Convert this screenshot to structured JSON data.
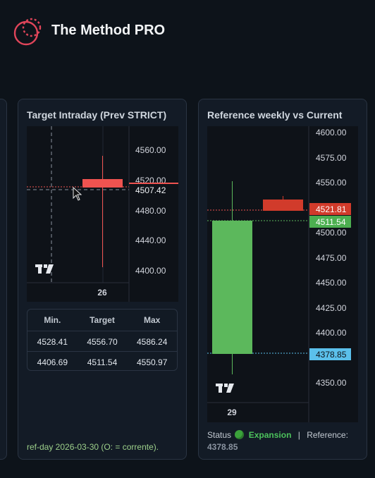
{
  "app": {
    "title": "The Method PRO"
  },
  "colors": {
    "up": "#5cb85c",
    "down": "#ef5350",
    "down_dark": "#d13b2b",
    "ref": "#5bc0eb",
    "grid": "#2a2e39"
  },
  "intraday": {
    "title": "Target Intraday (Prev STRICT)",
    "x_label": "26",
    "price_labels": [
      "4560.00",
      "4520.00",
      "4480.00",
      "4440.00",
      "4400.00"
    ],
    "current_price": "4507.42",
    "table": {
      "headers": [
        "Min.",
        "Target",
        "Max"
      ],
      "rows": [
        [
          "4528.41",
          "4556.70",
          "4586.24"
        ],
        [
          "4406.69",
          "4511.54",
          "4550.97"
        ]
      ]
    },
    "footnote": "ref-day 2026-03-30 (O: = corrente)."
  },
  "weekly": {
    "title": "Reference weekly vs Current",
    "x_label": "29",
    "price_labels": [
      "4600.00",
      "4575.00",
      "4550.00",
      "4525.00",
      "4500.00",
      "4475.00",
      "4450.00",
      "4425.00",
      "4400.00",
      "4375.00",
      "4350.00"
    ],
    "badges": {
      "current": "4521.81",
      "target": "4511.54",
      "reference": "4378.85"
    },
    "status": {
      "label": "Status",
      "icon": "green-circle-icon",
      "value": "Expansion",
      "separator": "|",
      "reference_label": "Reference:",
      "reference_value": "4378.85"
    }
  },
  "chart_data": [
    {
      "type": "candlestick",
      "title": "Target Intraday (Prev STRICT)",
      "x": [
        "26"
      ],
      "ylim": [
        4390,
        4600
      ],
      "candles": [
        {
          "x": "26",
          "open": 4517,
          "high": 4548,
          "low": 4408,
          "close": 4509
        }
      ],
      "current_price": 4507.42
    },
    {
      "type": "candlestick",
      "title": "Reference weekly vs Current",
      "x": [
        "29"
      ],
      "ylim": [
        4340,
        4600
      ],
      "candles": [
        {
          "x": "29",
          "open": 4378.85,
          "high": 4550,
          "low": 4357,
          "close": 4511.54
        },
        {
          "x": "current",
          "open": 4532,
          "high": 4535,
          "low": 4521.81,
          "close": 4521.81
        }
      ],
      "lines": {
        "current": 4521.81,
        "target": 4511.54,
        "reference": 4378.85
      }
    }
  ]
}
